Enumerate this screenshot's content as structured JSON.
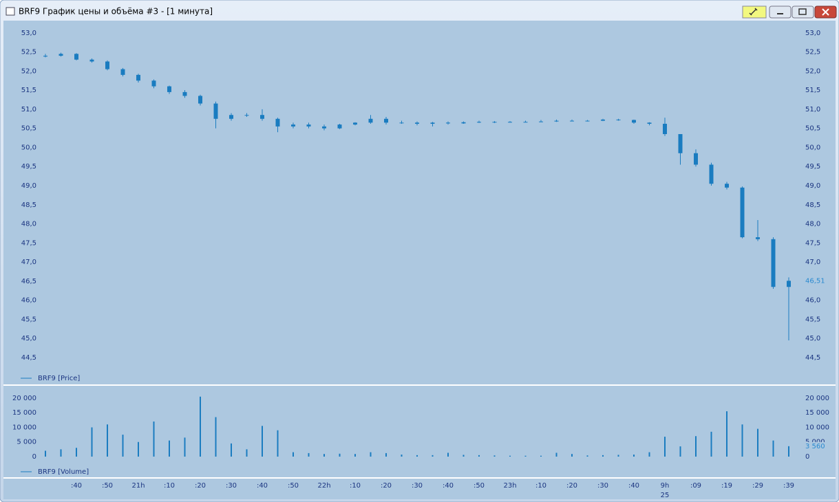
{
  "window": {
    "title": "BRF9 График цены и объёма #3 - [1 минута]"
  },
  "chart_data": [
    {
      "type": "candlestick",
      "categories": [
        null,
        null,
        ":40",
        null,
        ":50",
        null,
        "21h",
        null,
        ":10",
        null,
        ":20",
        null,
        ":30",
        null,
        ":40",
        null,
        ":50",
        null,
        "22h",
        null,
        ":10",
        null,
        ":20",
        null,
        ":30",
        null,
        ":40",
        null,
        ":50",
        null,
        "23h",
        null,
        ":10",
        null,
        ":20",
        null,
        ":30",
        null,
        ":40",
        null,
        "9h",
        null,
        ":09",
        null,
        ":19",
        null,
        ":29",
        null,
        ":39"
      ],
      "series": [
        {
          "name": "BRF9 [Price]",
          "color": "#1a7cc0",
          "open": [
            52.38,
            52.4,
            52.45,
            52.3,
            52.25,
            52.05,
            51.9,
            51.75,
            51.6,
            51.45,
            51.35,
            51.15,
            50.75,
            50.85,
            50.85,
            50.75,
            50.55,
            50.6,
            50.55,
            50.5,
            50.6,
            50.65,
            50.75,
            50.65,
            50.65,
            50.62,
            50.65,
            50.63,
            50.66,
            50.67,
            50.66,
            50.67,
            50.67,
            50.68,
            50.7,
            50.7,
            50.7,
            50.73,
            50.72,
            50.65,
            50.62,
            50.35,
            49.85,
            49.55,
            49.05,
            48.95,
            47.65,
            47.6,
            46.35
          ],
          "high": [
            52.45,
            52.48,
            52.47,
            52.33,
            52.28,
            52.08,
            51.93,
            51.78,
            51.62,
            51.5,
            51.38,
            51.2,
            50.9,
            50.9,
            51.0,
            50.78,
            50.65,
            50.65,
            50.6,
            50.62,
            50.66,
            50.85,
            50.8,
            50.7,
            50.68,
            50.67,
            50.68,
            50.68,
            50.7,
            50.69,
            50.69,
            50.7,
            50.72,
            50.73,
            50.73,
            50.72,
            50.75,
            50.75,
            50.73,
            50.66,
            50.78,
            50.35,
            49.95,
            49.6,
            49.1,
            48.98,
            48.1,
            47.65,
            46.6
          ],
          "low": [
            52.36,
            52.38,
            52.28,
            52.22,
            52.02,
            51.86,
            51.7,
            51.55,
            51.4,
            51.3,
            51.1,
            50.5,
            50.7,
            50.8,
            50.7,
            50.4,
            50.5,
            50.5,
            50.45,
            50.48,
            50.58,
            50.62,
            50.6,
            50.62,
            50.58,
            50.55,
            50.6,
            50.62,
            50.64,
            50.64,
            50.65,
            50.66,
            50.66,
            50.67,
            50.68,
            50.68,
            50.69,
            50.7,
            50.62,
            50.58,
            50.3,
            49.55,
            49.5,
            49.0,
            48.9,
            47.62,
            47.55,
            46.3,
            44.95
          ],
          "close": [
            52.4,
            52.45,
            52.3,
            52.25,
            52.05,
            51.9,
            51.75,
            51.6,
            51.45,
            51.35,
            51.15,
            50.75,
            50.85,
            50.85,
            50.75,
            50.55,
            50.6,
            50.55,
            50.5,
            50.6,
            50.65,
            50.75,
            50.65,
            50.65,
            50.62,
            50.65,
            50.63,
            50.66,
            50.67,
            50.66,
            50.67,
            50.67,
            50.68,
            50.7,
            50.7,
            50.7,
            50.73,
            50.72,
            50.65,
            50.62,
            50.35,
            49.85,
            49.55,
            49.05,
            48.95,
            47.65,
            47.6,
            46.35,
            46.51
          ],
          "value_labels": [
            null,
            null,
            null,
            null,
            null,
            null,
            null,
            null,
            null,
            null,
            null,
            null,
            null,
            null,
            null,
            null,
            null,
            null,
            null,
            null,
            null,
            null,
            null,
            null,
            null,
            null,
            null,
            null,
            null,
            null,
            null,
            null,
            null,
            null,
            null,
            null,
            null,
            null,
            null,
            null,
            null,
            null,
            null,
            null,
            null,
            null,
            null,
            null,
            "46,51"
          ]
        }
      ],
      "ylim": [
        44.05,
        53.32
      ],
      "yticks": [
        {
          "value": 44.5,
          "label": "44,5"
        },
        {
          "value": 45,
          "label": "45,0"
        },
        {
          "value": 45.5,
          "label": "45,5"
        },
        {
          "value": 46,
          "label": "46,0"
        },
        {
          "value": 46.5,
          "label": "46,5"
        },
        {
          "value": 47,
          "label": "47,0"
        },
        {
          "value": 47.5,
          "label": "47,5"
        },
        {
          "value": 48,
          "label": "48,0"
        },
        {
          "value": 48.5,
          "label": "48,5"
        },
        {
          "value": 49,
          "label": "49,0"
        },
        {
          "value": 49.5,
          "label": "49,5"
        },
        {
          "value": 50,
          "label": "50,0"
        },
        {
          "value": 50.5,
          "label": "50,5"
        },
        {
          "value": 51,
          "label": "51,0"
        },
        {
          "value": 51.5,
          "label": "51,5"
        },
        {
          "value": 52,
          "label": "52,0"
        },
        {
          "value": 52.5,
          "label": "52,5"
        },
        {
          "value": 53,
          "label": "53,0"
        }
      ]
    },
    {
      "type": "bar",
      "categories": [
        null,
        null,
        ":40",
        null,
        ":50",
        null,
        "21h",
        null,
        ":10",
        null,
        ":20",
        null,
        ":30",
        null,
        ":40",
        null,
        ":50",
        null,
        "22h",
        null,
        ":10",
        null,
        ":20",
        null,
        ":30",
        null,
        ":40",
        null,
        ":50",
        null,
        "23h",
        null,
        ":10",
        null,
        ":20",
        null,
        ":30",
        null,
        ":40",
        null,
        "9h",
        null,
        ":09",
        null,
        ":19",
        null,
        ":29",
        null,
        ":39"
      ],
      "date_label": "25",
      "series": [
        {
          "name": "BRF9 [Volume]",
          "color": "#1a7cc0",
          "values": [
            2000,
            2500,
            3000,
            10000,
            11000,
            7500,
            5000,
            12000,
            5500,
            6500,
            20500,
            13500,
            4500,
            2500,
            10500,
            9000,
            1500,
            1200,
            900,
            1000,
            900,
            1500,
            1200,
            700,
            500,
            500,
            1300,
            600,
            500,
            400,
            300,
            300,
            300,
            1300,
            900,
            400,
            500,
            600,
            700,
            1500,
            6800,
            3500,
            7000,
            8500,
            15500,
            11000,
            9500,
            5500,
            3560
          ],
          "value_labels": [
            null,
            null,
            null,
            null,
            null,
            null,
            null,
            null,
            null,
            null,
            null,
            null,
            null,
            null,
            null,
            null,
            null,
            null,
            null,
            null,
            null,
            null,
            null,
            null,
            null,
            null,
            null,
            null,
            null,
            null,
            null,
            null,
            null,
            null,
            null,
            null,
            null,
            null,
            null,
            null,
            null,
            null,
            null,
            null,
            null,
            null,
            null,
            null,
            "3 560"
          ]
        }
      ],
      "ylim": [
        0,
        22100
      ],
      "yticks": [
        0,
        {
          "value": 5000,
          "label": "5 000"
        },
        {
          "value": 10000,
          "label": "10 000"
        },
        {
          "value": 15000,
          "label": "15 000"
        },
        {
          "value": 20000,
          "label": "20 000"
        }
      ]
    }
  ]
}
